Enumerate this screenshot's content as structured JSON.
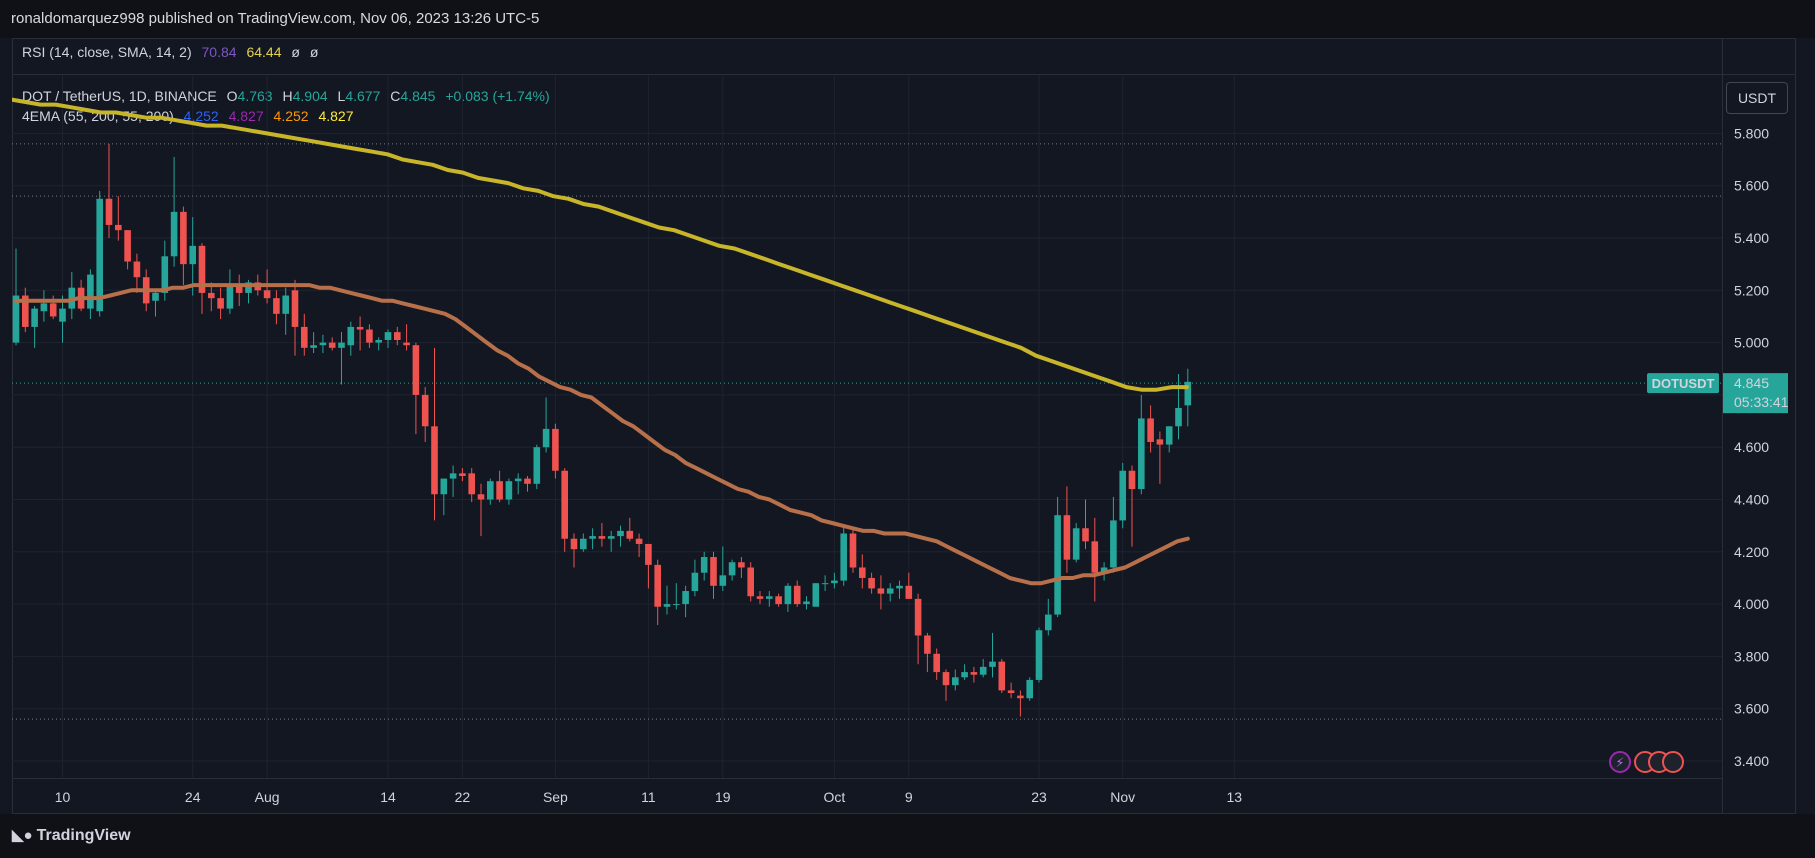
{
  "header": {
    "published": "ronaldomarquez998 published on TradingView.com, Nov 06, 2023 13:26 UTC-5"
  },
  "rsi_legend": {
    "label": "RSI (14, close, SMA, 14, 2)",
    "v1": "70.84",
    "v2": "64.44",
    "v3": "ø",
    "v4": "ø"
  },
  "symbol_legend": {
    "label": "DOT / TetherUS, 1D, BINANCE",
    "o_label": "O",
    "o": "4.763",
    "h_label": "H",
    "h": "4.904",
    "l_label": "L",
    "l": "4.677",
    "c_label": "C",
    "c": "4.845",
    "chg": "+0.083 (+1.74%)"
  },
  "ema_legend": {
    "label": "4EMA (55, 200, 55, 200)",
    "v1": "4.252",
    "v2": "4.827",
    "v3": "4.252",
    "v4": "4.827"
  },
  "currency_button": "USDT",
  "footer": {
    "logo_text": "TradingView"
  },
  "price_tag": {
    "symbol": "DOTUSDT",
    "price": "4.845",
    "countdown": "05:33:41"
  },
  "colors": {
    "up": "#26a69a",
    "down": "#ef5350",
    "ema55": "#b7704a",
    "ema200": "#c8b52a",
    "bg": "#131722",
    "grid": "#1f2330"
  },
  "chart_data": {
    "type": "candlestick",
    "symbol": "DOT / TetherUS",
    "interval": "1D",
    "exchange": "BINANCE",
    "y_ticks": [
      "5.800",
      "5.600",
      "5.400",
      "5.200",
      "5.000",
      "4.800",
      "4.600",
      "4.400",
      "4.200",
      "4.000",
      "3.800",
      "3.600",
      "3.400"
    ],
    "ylim": [
      3.34,
      5.94
    ],
    "x_ticks": [
      {
        "label": "10",
        "day": 5
      },
      {
        "label": "24",
        "day": 19
      },
      {
        "label": "Aug",
        "day": 27
      },
      {
        "label": "14",
        "day": 40
      },
      {
        "label": "22",
        "day": 48
      },
      {
        "label": "Sep",
        "day": 58
      },
      {
        "label": "11",
        "day": 68
      },
      {
        "label": "19",
        "day": 76
      },
      {
        "label": "Oct",
        "day": 88
      },
      {
        "label": "9",
        "day": 96
      },
      {
        "label": "23",
        "day": 110
      },
      {
        "label": "Nov",
        "day": 119
      },
      {
        "label": "13",
        "day": 131
      }
    ],
    "dotted_levels": [
      5.76,
      5.56,
      3.56
    ],
    "candles": [
      {
        "o": 5.0,
        "h": 5.36,
        "l": 4.99,
        "c": 5.18
      },
      {
        "o": 5.18,
        "h": 5.21,
        "l": 5.04,
        "c": 5.06
      },
      {
        "o": 5.06,
        "h": 5.14,
        "l": 4.98,
        "c": 5.13
      },
      {
        "o": 5.12,
        "h": 5.2,
        "l": 5.08,
        "c": 5.15
      },
      {
        "o": 5.15,
        "h": 5.18,
        "l": 5.09,
        "c": 5.1
      },
      {
        "o": 5.08,
        "h": 5.18,
        "l": 5.0,
        "c": 5.13
      },
      {
        "o": 5.13,
        "h": 5.27,
        "l": 5.09,
        "c": 5.21
      },
      {
        "o": 5.21,
        "h": 5.24,
        "l": 5.12,
        "c": 5.13
      },
      {
        "o": 5.13,
        "h": 5.28,
        "l": 5.09,
        "c": 5.26
      },
      {
        "o": 5.12,
        "h": 5.58,
        "l": 5.1,
        "c": 5.55
      },
      {
        "o": 5.55,
        "h": 5.76,
        "l": 5.4,
        "c": 5.45
      },
      {
        "o": 5.45,
        "h": 5.56,
        "l": 5.39,
        "c": 5.43
      },
      {
        "o": 5.43,
        "h": 5.43,
        "l": 5.28,
        "c": 5.31
      },
      {
        "o": 5.31,
        "h": 5.34,
        "l": 5.19,
        "c": 5.25
      },
      {
        "o": 5.25,
        "h": 5.28,
        "l": 5.12,
        "c": 5.15
      },
      {
        "o": 5.16,
        "h": 5.2,
        "l": 5.1,
        "c": 5.19
      },
      {
        "o": 5.19,
        "h": 5.39,
        "l": 5.16,
        "c": 5.33
      },
      {
        "o": 5.33,
        "h": 5.71,
        "l": 5.29,
        "c": 5.5
      },
      {
        "o": 5.5,
        "h": 5.52,
        "l": 5.22,
        "c": 5.3
      },
      {
        "o": 5.3,
        "h": 5.48,
        "l": 5.18,
        "c": 5.37
      },
      {
        "o": 5.37,
        "h": 5.38,
        "l": 5.11,
        "c": 5.19
      },
      {
        "o": 5.19,
        "h": 5.23,
        "l": 5.12,
        "c": 5.17
      },
      {
        "o": 5.17,
        "h": 5.21,
        "l": 5.09,
        "c": 5.13
      },
      {
        "o": 5.13,
        "h": 5.28,
        "l": 5.11,
        "c": 5.22
      },
      {
        "o": 5.22,
        "h": 5.26,
        "l": 5.14,
        "c": 5.19
      },
      {
        "o": 5.19,
        "h": 5.24,
        "l": 5.15,
        "c": 5.23
      },
      {
        "o": 5.23,
        "h": 5.26,
        "l": 5.18,
        "c": 5.2
      },
      {
        "o": 5.2,
        "h": 5.28,
        "l": 5.15,
        "c": 5.17
      },
      {
        "o": 5.17,
        "h": 5.2,
        "l": 5.07,
        "c": 5.11
      },
      {
        "o": 5.11,
        "h": 5.21,
        "l": 5.03,
        "c": 5.18
      },
      {
        "o": 5.2,
        "h": 5.24,
        "l": 4.95,
        "c": 5.06
      },
      {
        "o": 5.06,
        "h": 5.11,
        "l": 4.95,
        "c": 4.98
      },
      {
        "o": 4.98,
        "h": 5.04,
        "l": 4.96,
        "c": 4.99
      },
      {
        "o": 4.99,
        "h": 5.03,
        "l": 4.96,
        "c": 5.0
      },
      {
        "o": 5.0,
        "h": 5.02,
        "l": 4.97,
        "c": 4.98
      },
      {
        "o": 4.98,
        "h": 5.04,
        "l": 4.84,
        "c": 5.0
      },
      {
        "o": 4.99,
        "h": 5.08,
        "l": 4.95,
        "c": 5.06
      },
      {
        "o": 5.06,
        "h": 5.1,
        "l": 4.97,
        "c": 5.05
      },
      {
        "o": 5.05,
        "h": 5.07,
        "l": 4.98,
        "c": 5.0
      },
      {
        "o": 5.0,
        "h": 5.02,
        "l": 4.97,
        "c": 5.01
      },
      {
        "o": 5.01,
        "h": 5.05,
        "l": 4.98,
        "c": 5.04
      },
      {
        "o": 5.04,
        "h": 5.06,
        "l": 4.99,
        "c": 5.01
      },
      {
        "o": 5.0,
        "h": 5.07,
        "l": 4.97,
        "c": 4.99
      },
      {
        "o": 4.99,
        "h": 5.0,
        "l": 4.65,
        "c": 4.8
      },
      {
        "o": 4.8,
        "h": 4.83,
        "l": 4.62,
        "c": 4.68
      },
      {
        "o": 4.68,
        "h": 4.98,
        "l": 4.32,
        "c": 4.42
      },
      {
        "o": 4.42,
        "h": 4.48,
        "l": 4.34,
        "c": 4.48
      },
      {
        "o": 4.48,
        "h": 4.53,
        "l": 4.41,
        "c": 4.5
      },
      {
        "o": 4.5,
        "h": 4.52,
        "l": 4.47,
        "c": 4.49
      },
      {
        "o": 4.5,
        "h": 4.52,
        "l": 4.39,
        "c": 4.42
      },
      {
        "o": 4.42,
        "h": 4.46,
        "l": 4.26,
        "c": 4.4
      },
      {
        "o": 4.4,
        "h": 4.48,
        "l": 4.38,
        "c": 4.47
      },
      {
        "o": 4.47,
        "h": 4.51,
        "l": 4.39,
        "c": 4.4
      },
      {
        "o": 4.4,
        "h": 4.48,
        "l": 4.38,
        "c": 4.47
      },
      {
        "o": 4.47,
        "h": 4.5,
        "l": 4.42,
        "c": 4.48
      },
      {
        "o": 4.48,
        "h": 4.49,
        "l": 4.43,
        "c": 4.46
      },
      {
        "o": 4.46,
        "h": 4.61,
        "l": 4.44,
        "c": 4.6
      },
      {
        "o": 4.6,
        "h": 4.79,
        "l": 4.58,
        "c": 4.67
      },
      {
        "o": 4.67,
        "h": 4.69,
        "l": 4.48,
        "c": 4.51
      },
      {
        "o": 4.51,
        "h": 4.52,
        "l": 4.2,
        "c": 4.25
      },
      {
        "o": 4.25,
        "h": 4.27,
        "l": 4.14,
        "c": 4.21
      },
      {
        "o": 4.21,
        "h": 4.27,
        "l": 4.2,
        "c": 4.25
      },
      {
        "o": 4.25,
        "h": 4.29,
        "l": 4.21,
        "c": 4.26
      },
      {
        "o": 4.26,
        "h": 4.31,
        "l": 4.22,
        "c": 4.25
      },
      {
        "o": 4.25,
        "h": 4.28,
        "l": 4.2,
        "c": 4.26
      },
      {
        "o": 4.26,
        "h": 4.3,
        "l": 4.22,
        "c": 4.28
      },
      {
        "o": 4.28,
        "h": 4.33,
        "l": 4.24,
        "c": 4.25
      },
      {
        "o": 4.25,
        "h": 4.27,
        "l": 4.18,
        "c": 4.23
      },
      {
        "o": 4.23,
        "h": 4.23,
        "l": 4.06,
        "c": 4.15
      },
      {
        "o": 4.15,
        "h": 4.17,
        "l": 3.92,
        "c": 3.99
      },
      {
        "o": 3.99,
        "h": 4.07,
        "l": 3.96,
        "c": 4.0
      },
      {
        "o": 4.0,
        "h": 4.08,
        "l": 3.98,
        "c": 4.0
      },
      {
        "o": 4.0,
        "h": 4.07,
        "l": 3.95,
        "c": 4.05
      },
      {
        "o": 4.05,
        "h": 4.17,
        "l": 4.03,
        "c": 4.12
      },
      {
        "o": 4.12,
        "h": 4.2,
        "l": 4.09,
        "c": 4.18
      },
      {
        "o": 4.18,
        "h": 4.2,
        "l": 4.02,
        "c": 4.07
      },
      {
        "o": 4.07,
        "h": 4.22,
        "l": 4.05,
        "c": 4.11
      },
      {
        "o": 4.11,
        "h": 4.17,
        "l": 4.09,
        "c": 4.16
      },
      {
        "o": 4.16,
        "h": 4.18,
        "l": 4.1,
        "c": 4.14
      },
      {
        "o": 4.14,
        "h": 4.16,
        "l": 4.01,
        "c": 4.03
      },
      {
        "o": 4.03,
        "h": 4.05,
        "l": 4.0,
        "c": 4.02
      },
      {
        "o": 4.02,
        "h": 4.05,
        "l": 3.99,
        "c": 4.03
      },
      {
        "o": 4.03,
        "h": 4.04,
        "l": 3.99,
        "c": 4.0
      },
      {
        "o": 4.0,
        "h": 4.08,
        "l": 3.97,
        "c": 4.07
      },
      {
        "o": 4.07,
        "h": 4.09,
        "l": 3.99,
        "c": 4.0
      },
      {
        "o": 4.0,
        "h": 4.03,
        "l": 3.98,
        "c": 4.01
      },
      {
        "o": 3.99,
        "h": 4.08,
        "l": 3.99,
        "c": 4.08
      },
      {
        "o": 4.08,
        "h": 4.11,
        "l": 4.05,
        "c": 4.08
      },
      {
        "o": 4.08,
        "h": 4.12,
        "l": 4.06,
        "c": 4.09
      },
      {
        "o": 4.09,
        "h": 4.3,
        "l": 4.07,
        "c": 4.27
      },
      {
        "o": 4.27,
        "h": 4.29,
        "l": 4.12,
        "c": 4.14
      },
      {
        "o": 4.14,
        "h": 4.19,
        "l": 4.06,
        "c": 4.1
      },
      {
        "o": 4.1,
        "h": 4.12,
        "l": 4.04,
        "c": 4.06
      },
      {
        "o": 4.06,
        "h": 4.11,
        "l": 3.98,
        "c": 4.04
      },
      {
        "o": 4.04,
        "h": 4.08,
        "l": 4.01,
        "c": 4.06
      },
      {
        "o": 4.06,
        "h": 4.09,
        "l": 4.02,
        "c": 4.07
      },
      {
        "o": 4.07,
        "h": 4.12,
        "l": 4.02,
        "c": 4.02
      },
      {
        "o": 4.02,
        "h": 4.04,
        "l": 3.77,
        "c": 3.88
      },
      {
        "o": 3.88,
        "h": 3.89,
        "l": 3.74,
        "c": 3.81
      },
      {
        "o": 3.81,
        "h": 3.83,
        "l": 3.71,
        "c": 3.74
      },
      {
        "o": 3.74,
        "h": 3.75,
        "l": 3.63,
        "c": 3.69
      },
      {
        "o": 3.69,
        "h": 3.75,
        "l": 3.67,
        "c": 3.72
      },
      {
        "o": 3.72,
        "h": 3.77,
        "l": 3.71,
        "c": 3.74
      },
      {
        "o": 3.74,
        "h": 3.76,
        "l": 3.7,
        "c": 3.73
      },
      {
        "o": 3.73,
        "h": 3.79,
        "l": 3.72,
        "c": 3.76
      },
      {
        "o": 3.76,
        "h": 3.89,
        "l": 3.72,
        "c": 3.78
      },
      {
        "o": 3.78,
        "h": 3.79,
        "l": 3.66,
        "c": 3.67
      },
      {
        "o": 3.67,
        "h": 3.7,
        "l": 3.64,
        "c": 3.66
      },
      {
        "o": 3.65,
        "h": 3.67,
        "l": 3.57,
        "c": 3.64
      },
      {
        "o": 3.64,
        "h": 3.72,
        "l": 3.63,
        "c": 3.71
      },
      {
        "o": 3.71,
        "h": 3.91,
        "l": 3.7,
        "c": 3.9
      },
      {
        "o": 3.9,
        "h": 4.02,
        "l": 3.88,
        "c": 3.96
      },
      {
        "o": 3.96,
        "h": 4.41,
        "l": 3.95,
        "c": 4.34
      },
      {
        "o": 4.34,
        "h": 4.45,
        "l": 4.12,
        "c": 4.17
      },
      {
        "o": 4.17,
        "h": 4.31,
        "l": 4.16,
        "c": 4.29
      },
      {
        "o": 4.29,
        "h": 4.4,
        "l": 4.21,
        "c": 4.24
      },
      {
        "o": 4.24,
        "h": 4.33,
        "l": 4.01,
        "c": 4.12
      },
      {
        "o": 4.12,
        "h": 4.16,
        "l": 4.09,
        "c": 4.14
      },
      {
        "o": 4.14,
        "h": 4.41,
        "l": 4.12,
        "c": 4.32
      },
      {
        "o": 4.32,
        "h": 4.54,
        "l": 4.29,
        "c": 4.51
      },
      {
        "o": 4.51,
        "h": 4.53,
        "l": 4.22,
        "c": 4.44
      },
      {
        "o": 4.44,
        "h": 4.8,
        "l": 4.42,
        "c": 4.71
      },
      {
        "o": 4.71,
        "h": 4.76,
        "l": 4.58,
        "c": 4.62
      },
      {
        "o": 4.63,
        "h": 4.66,
        "l": 4.46,
        "c": 4.61
      },
      {
        "o": 4.61,
        "h": 4.68,
        "l": 4.58,
        "c": 4.68
      },
      {
        "o": 4.68,
        "h": 4.88,
        "l": 4.63,
        "c": 4.75
      },
      {
        "o": 4.76,
        "h": 4.9,
        "l": 4.68,
        "c": 4.85
      }
    ],
    "ema55": [
      5.16,
      5.16,
      5.16,
      5.16,
      5.16,
      5.16,
      5.17,
      5.17,
      5.17,
      5.18,
      5.19,
      5.2,
      5.2,
      5.2,
      5.2,
      5.21,
      5.21,
      5.22,
      5.22,
      5.22,
      5.22,
      5.22,
      5.22,
      5.22,
      5.22,
      5.22,
      5.22,
      5.22,
      5.22,
      5.21,
      5.21,
      5.2,
      5.19,
      5.18,
      5.17,
      5.16,
      5.16,
      5.15,
      5.14,
      5.13,
      5.12,
      5.11,
      5.09,
      5.06,
      5.03,
      5.0,
      4.97,
      4.95,
      4.92,
      4.9,
      4.87,
      4.85,
      4.83,
      4.82,
      4.8,
      4.79,
      4.76,
      4.73,
      4.7,
      4.68,
      4.65,
      4.62,
      4.59,
      4.57,
      4.54,
      4.52,
      4.5,
      4.48,
      4.46,
      4.44,
      4.43,
      4.41,
      4.4,
      4.38,
      4.36,
      4.35,
      4.34,
      4.32,
      4.31,
      4.3,
      4.29,
      4.28,
      4.28,
      4.27,
      4.27,
      4.27,
      4.26,
      4.25,
      4.24,
      4.22,
      4.2,
      4.18,
      4.16,
      4.14,
      4.12,
      4.1,
      4.09,
      4.08,
      4.08,
      4.09,
      4.1,
      4.1,
      4.11,
      4.11,
      4.12,
      4.13,
      4.14,
      4.16,
      4.18,
      4.2,
      4.22,
      4.24,
      4.25
    ],
    "ema200": [
      5.93,
      5.92,
      5.91,
      5.91,
      5.9,
      5.89,
      5.88,
      5.88,
      5.87,
      5.86,
      5.86,
      5.85,
      5.84,
      5.83,
      5.83,
      5.82,
      5.81,
      5.8,
      5.79,
      5.78,
      5.77,
      5.76,
      5.75,
      5.74,
      5.73,
      5.72,
      5.7,
      5.69,
      5.68,
      5.66,
      5.65,
      5.63,
      5.62,
      5.61,
      5.59,
      5.58,
      5.56,
      5.55,
      5.53,
      5.52,
      5.5,
      5.48,
      5.46,
      5.44,
      5.43,
      5.41,
      5.39,
      5.37,
      5.36,
      5.34,
      5.32,
      5.3,
      5.28,
      5.26,
      5.24,
      5.22,
      5.2,
      5.18,
      5.16,
      5.14,
      5.12,
      5.1,
      5.08,
      5.06,
      5.04,
      5.02,
      5.0,
      4.98,
      4.95,
      4.93,
      4.91,
      4.89,
      4.87,
      4.85,
      4.83,
      4.82,
      4.82,
      4.83,
      4.83
    ],
    "price_tag_value": 4.845,
    "last_close_level": 4.845
  }
}
